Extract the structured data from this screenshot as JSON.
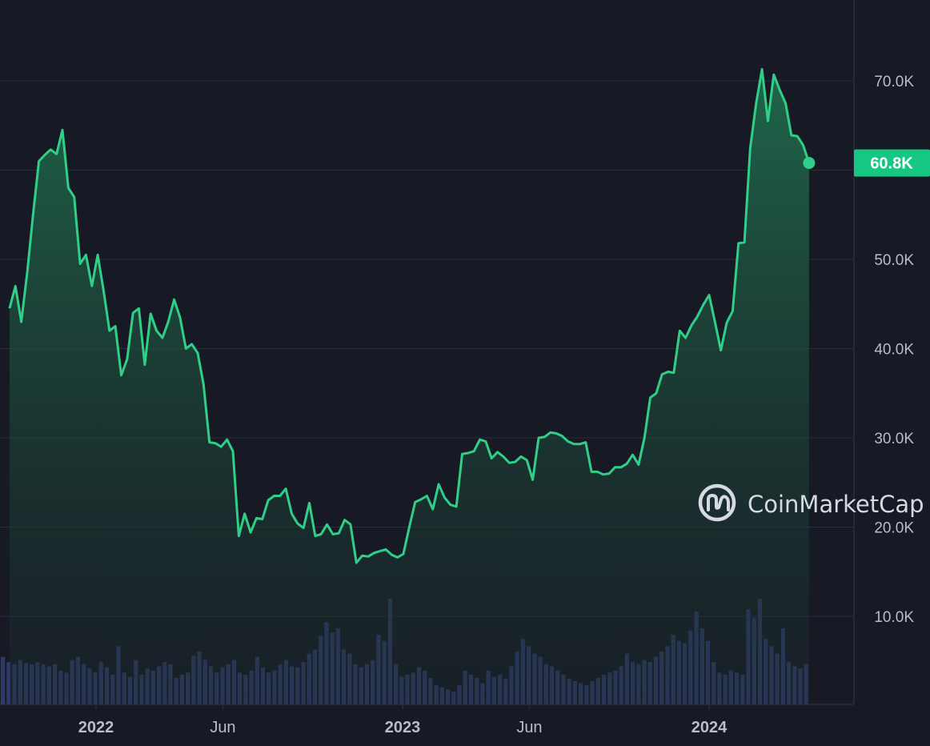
{
  "colors": {
    "background": "#171924",
    "line": "#2fcf88",
    "area_top": "#1f6a4c",
    "area_bottom": "#1b2b2b",
    "volume": "#2f3a6b",
    "grid": "#2a2d3c",
    "axis_text": "#b8bccb",
    "price_tag": "#16c784"
  },
  "watermark": {
    "text": "CoinMarketCap",
    "icon": "coinmarketcap-logo-icon"
  },
  "chart_data": {
    "type": "area",
    "title": "",
    "xlabel": "",
    "ylabel": "",
    "grid": true,
    "legend": "none",
    "current_price_label": "60.8K",
    "y_axis": {
      "ylim": [
        0,
        79000
      ],
      "ticks": [
        10000,
        20000,
        30000,
        40000,
        50000,
        60000,
        70000
      ],
      "tick_labels": [
        "10.0K",
        "20.0K",
        "30.0K",
        "40.0K",
        "50.0K",
        "",
        "70.0K"
      ]
    },
    "x_ticks": [
      {
        "label": "2022",
        "date": "2022-01-01",
        "bold": true
      },
      {
        "label": "Jun",
        "date": "2022-06-01",
        "bold": false
      },
      {
        "label": "2023",
        "date": "2023-01-01",
        "bold": true
      },
      {
        "label": "Jun",
        "date": "2023-06-01",
        "bold": false
      },
      {
        "label": "2024",
        "date": "2024-01-01",
        "bold": true
      }
    ],
    "series": [
      {
        "values_type": "price",
        "points": [
          [
            "2021-09-20",
            44500
          ],
          [
            "2021-09-27",
            47000
          ],
          [
            "2021-10-04",
            43000
          ],
          [
            "2021-10-11",
            48500
          ],
          [
            "2021-10-18",
            55000
          ],
          [
            "2021-10-25",
            61000
          ],
          [
            "2021-11-01",
            61700
          ],
          [
            "2021-11-08",
            62300
          ],
          [
            "2021-11-15",
            61800
          ],
          [
            "2021-11-22",
            64500
          ],
          [
            "2021-11-29",
            58000
          ],
          [
            "2021-12-06",
            57000
          ],
          [
            "2021-12-13",
            49500
          ],
          [
            "2021-12-20",
            50500
          ],
          [
            "2021-12-27",
            47000
          ],
          [
            "2022-01-03",
            50500
          ],
          [
            "2022-01-10",
            46500
          ],
          [
            "2022-01-17",
            42000
          ],
          [
            "2022-01-24",
            42500
          ],
          [
            "2022-01-31",
            37000
          ],
          [
            "2022-02-07",
            38800
          ],
          [
            "2022-02-14",
            44000
          ],
          [
            "2022-02-21",
            44500
          ],
          [
            "2022-02-28",
            38200
          ],
          [
            "2022-03-07",
            43900
          ],
          [
            "2022-03-14",
            42000
          ],
          [
            "2022-03-21",
            41200
          ],
          [
            "2022-03-28",
            43000
          ],
          [
            "2022-04-04",
            45500
          ],
          [
            "2022-04-11",
            43500
          ],
          [
            "2022-04-18",
            40000
          ],
          [
            "2022-04-25",
            40500
          ],
          [
            "2022-05-02",
            39500
          ],
          [
            "2022-05-09",
            36000
          ],
          [
            "2022-05-16",
            29500
          ],
          [
            "2022-05-23",
            29400
          ],
          [
            "2022-05-30",
            29000
          ],
          [
            "2022-06-06",
            29800
          ],
          [
            "2022-06-13",
            28500
          ],
          [
            "2022-06-20",
            19000
          ],
          [
            "2022-06-27",
            21500
          ],
          [
            "2022-07-04",
            19400
          ],
          [
            "2022-07-11",
            21000
          ],
          [
            "2022-07-18",
            20900
          ],
          [
            "2022-07-25",
            23000
          ],
          [
            "2022-08-01",
            23500
          ],
          [
            "2022-08-08",
            23500
          ],
          [
            "2022-08-15",
            24300
          ],
          [
            "2022-08-22",
            21500
          ],
          [
            "2022-08-29",
            20400
          ],
          [
            "2022-09-05",
            19900
          ],
          [
            "2022-09-12",
            22700
          ],
          [
            "2022-09-19",
            19000
          ],
          [
            "2022-09-26",
            19200
          ],
          [
            "2022-10-03",
            20300
          ],
          [
            "2022-10-10",
            19200
          ],
          [
            "2022-10-17",
            19300
          ],
          [
            "2022-10-24",
            20800
          ],
          [
            "2022-10-31",
            20300
          ],
          [
            "2022-11-07",
            16000
          ],
          [
            "2022-11-14",
            16800
          ],
          [
            "2022-11-21",
            16700
          ],
          [
            "2022-11-28",
            17100
          ],
          [
            "2022-12-05",
            17300
          ],
          [
            "2022-12-12",
            17500
          ],
          [
            "2022-12-19",
            16900
          ],
          [
            "2022-12-26",
            16600
          ],
          [
            "2023-01-02",
            17000
          ],
          [
            "2023-01-09",
            20000
          ],
          [
            "2023-01-16",
            22800
          ],
          [
            "2023-01-23",
            23100
          ],
          [
            "2023-01-30",
            23500
          ],
          [
            "2023-02-06",
            22000
          ],
          [
            "2023-02-13",
            24800
          ],
          [
            "2023-02-20",
            23300
          ],
          [
            "2023-02-27",
            22500
          ],
          [
            "2023-03-06",
            22300
          ],
          [
            "2023-03-13",
            28200
          ],
          [
            "2023-03-20",
            28300
          ],
          [
            "2023-03-27",
            28500
          ],
          [
            "2023-04-03",
            29800
          ],
          [
            "2023-04-10",
            29600
          ],
          [
            "2023-04-17",
            27700
          ],
          [
            "2023-04-24",
            28400
          ],
          [
            "2023-05-01",
            27900
          ],
          [
            "2023-05-08",
            27200
          ],
          [
            "2023-05-15",
            27300
          ],
          [
            "2023-05-22",
            27900
          ],
          [
            "2023-05-29",
            27500
          ],
          [
            "2023-06-05",
            25300
          ],
          [
            "2023-06-12",
            30000
          ],
          [
            "2023-06-19",
            30100
          ],
          [
            "2023-06-26",
            30600
          ],
          [
            "2023-07-03",
            30500
          ],
          [
            "2023-07-10",
            30200
          ],
          [
            "2023-07-17",
            29600
          ],
          [
            "2023-07-24",
            29300
          ],
          [
            "2023-07-31",
            29300
          ],
          [
            "2023-08-07",
            29500
          ],
          [
            "2023-08-14",
            26200
          ],
          [
            "2023-08-21",
            26200
          ],
          [
            "2023-08-28",
            25900
          ],
          [
            "2023-09-04",
            26000
          ],
          [
            "2023-09-11",
            26700
          ],
          [
            "2023-09-18",
            26700
          ],
          [
            "2023-09-25",
            27100
          ],
          [
            "2023-10-02",
            28100
          ],
          [
            "2023-10-09",
            27000
          ],
          [
            "2023-10-16",
            30000
          ],
          [
            "2023-10-23",
            34500
          ],
          [
            "2023-10-30",
            35000
          ],
          [
            "2023-11-06",
            37100
          ],
          [
            "2023-11-13",
            37400
          ],
          [
            "2023-11-20",
            37300
          ],
          [
            "2023-11-27",
            42000
          ],
          [
            "2023-12-04",
            41200
          ],
          [
            "2023-12-11",
            42600
          ],
          [
            "2023-12-18",
            43600
          ],
          [
            "2023-12-25",
            44900
          ],
          [
            "2024-01-01",
            46000
          ],
          [
            "2024-01-08",
            43000
          ],
          [
            "2024-01-15",
            39800
          ],
          [
            "2024-01-22",
            42900
          ],
          [
            "2024-01-29",
            44200
          ],
          [
            "2024-02-05",
            51800
          ],
          [
            "2024-02-12",
            51900
          ],
          [
            "2024-02-19",
            62500
          ],
          [
            "2024-02-26",
            67500
          ],
          [
            "2024-03-04",
            71300
          ],
          [
            "2024-03-11",
            65500
          ],
          [
            "2024-03-18",
            70700
          ],
          [
            "2024-03-25",
            69000
          ],
          [
            "2024-04-01",
            67500
          ],
          [
            "2024-04-08",
            63900
          ],
          [
            "2024-04-15",
            63800
          ],
          [
            "2024-04-22",
            62800
          ],
          [
            "2024-04-29",
            60800
          ]
        ]
      }
    ],
    "volume": {
      "values_unit": "relative",
      "values": [
        0.45,
        0.4,
        0.38,
        0.42,
        0.39,
        0.38,
        0.4,
        0.38,
        0.36,
        0.38,
        0.32,
        0.3,
        0.42,
        0.45,
        0.38,
        0.34,
        0.3,
        0.4,
        0.35,
        0.28,
        0.55,
        0.3,
        0.26,
        0.42,
        0.28,
        0.34,
        0.32,
        0.36,
        0.4,
        0.38,
        0.25,
        0.28,
        0.3,
        0.46,
        0.5,
        0.42,
        0.36,
        0.3,
        0.35,
        0.38,
        0.42,
        0.3,
        0.28,
        0.32,
        0.45,
        0.35,
        0.3,
        0.32,
        0.38,
        0.42,
        0.36,
        0.35,
        0.4,
        0.48,
        0.52,
        0.65,
        0.78,
        0.68,
        0.72,
        0.52,
        0.48,
        0.38,
        0.35,
        0.38,
        0.42,
        0.66,
        0.6,
        1.0,
        0.38,
        0.26,
        0.28,
        0.3,
        0.35,
        0.32,
        0.25,
        0.18,
        0.16,
        0.14,
        0.12,
        0.18,
        0.32,
        0.28,
        0.25,
        0.2,
        0.32,
        0.26,
        0.28,
        0.24,
        0.36,
        0.5,
        0.62,
        0.55,
        0.48,
        0.45,
        0.38,
        0.36,
        0.32,
        0.28,
        0.24,
        0.22,
        0.2,
        0.18,
        0.22,
        0.25,
        0.28,
        0.3,
        0.32,
        0.36,
        0.48,
        0.4,
        0.38,
        0.42,
        0.4,
        0.45,
        0.5,
        0.55,
        0.66,
        0.6,
        0.58,
        0.7,
        0.88,
        0.72,
        0.6,
        0.4,
        0.3,
        0.28,
        0.32,
        0.3,
        0.28,
        0.9,
        0.82,
        1.0,
        0.62,
        0.55,
        0.48,
        0.72,
        0.4,
        0.36,
        0.34,
        0.38
      ]
    }
  }
}
